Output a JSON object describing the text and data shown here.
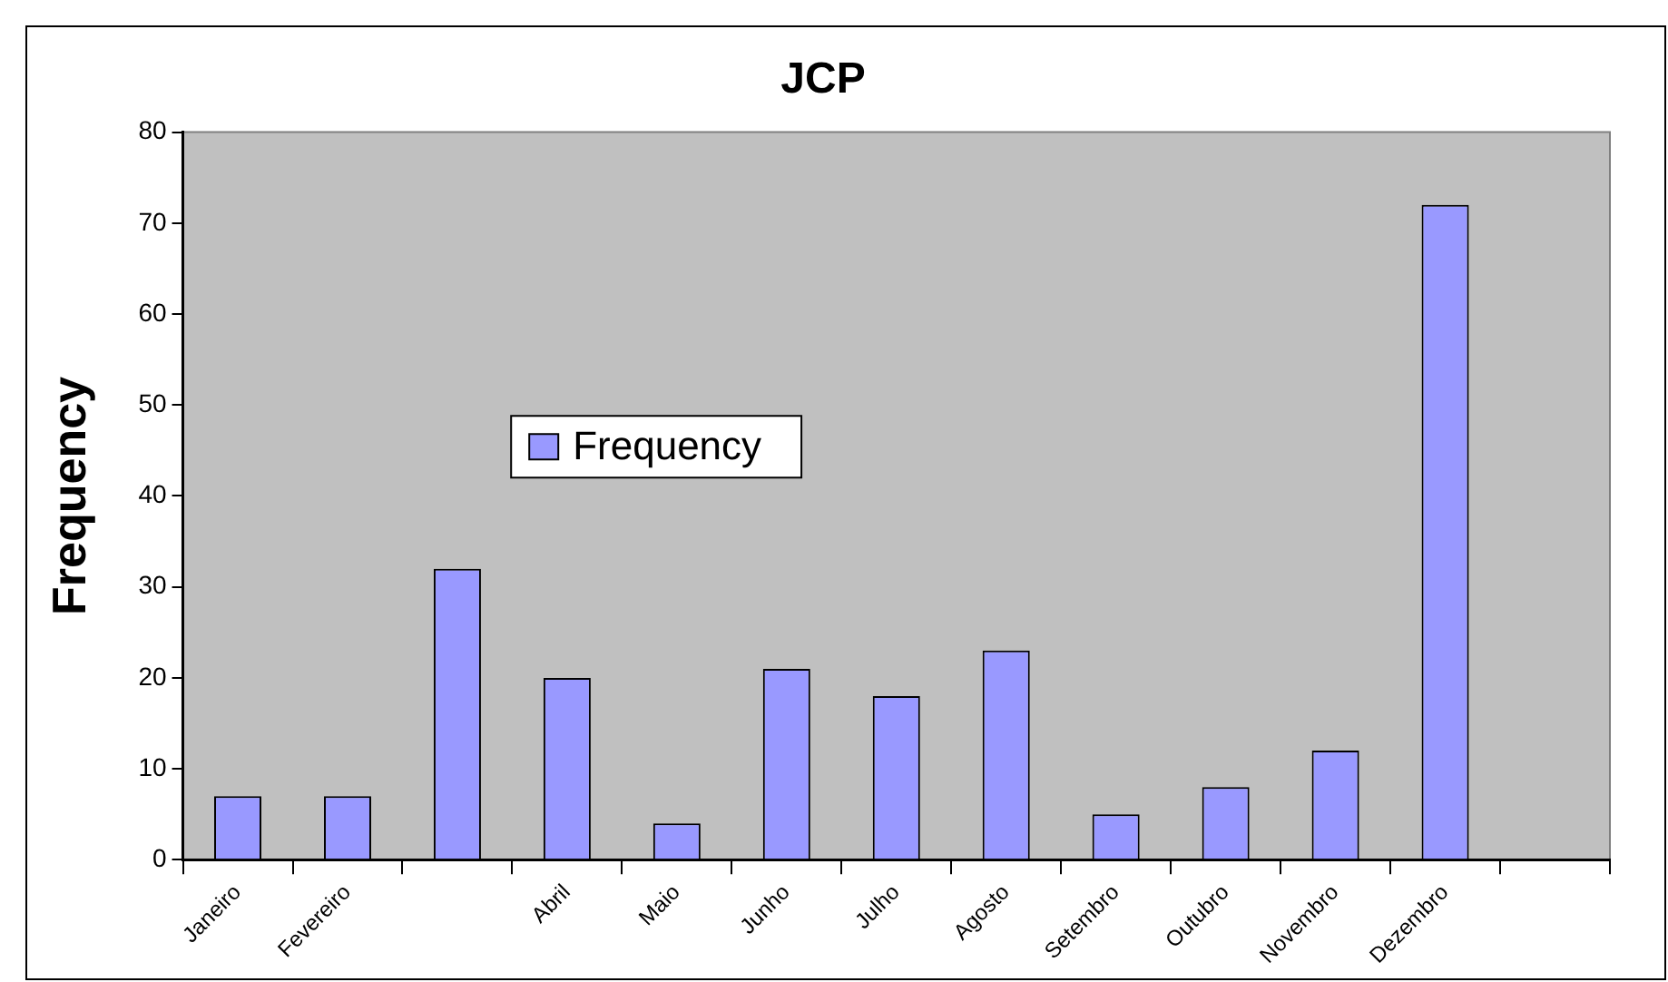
{
  "chart_data": {
    "type": "bar",
    "title": "JCP",
    "ylabel": "Frequency",
    "categories": [
      "Janeiro",
      "Fevereiro",
      null,
      "Abril",
      "Maio",
      "Junho",
      "Julho",
      "Agosto",
      "Setembro",
      "Outubro",
      "Novembro",
      "Dezembro",
      null
    ],
    "series": [
      {
        "name": "Frequency",
        "color": "#9999ff",
        "values": [
          7,
          7,
          32,
          20,
          4,
          21,
          18,
          23,
          5,
          8,
          12,
          72,
          null
        ]
      }
    ],
    "ylim": [
      0,
      80
    ],
    "yticks": [
      0,
      10,
      20,
      30,
      40,
      50,
      60,
      70,
      80
    ],
    "grid": false,
    "legend": "center"
  }
}
